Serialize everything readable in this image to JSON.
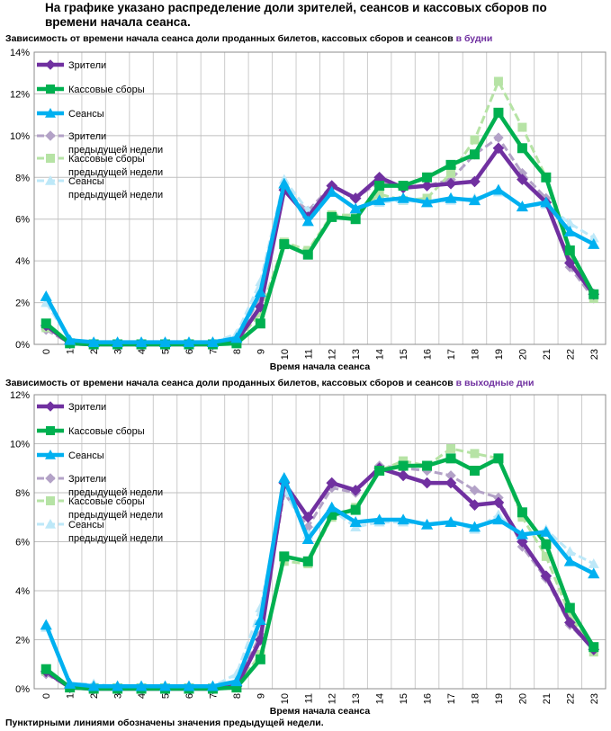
{
  "page": {
    "title": "На графике указано распределение доли зрителей, сеансов и кассовых сборов по времени начала сеанса.",
    "footnote": "Пунктирными линиями обозначены значения предыдущей недели."
  },
  "colors": {
    "viewers": "#7030a0",
    "viewers_prev": "#b3a2c7",
    "box": "#00b050",
    "box_prev": "#b6e3a5",
    "sessions": "#00b0f0",
    "sessions_prev": "#bde8f8",
    "accent": "#7030a0"
  },
  "chart_data": [
    {
      "type": "line",
      "title": "Зависимость от времени начала сеанса доли проданных билетов, кассовых сборов и сеансов",
      "title_accent": "в будни",
      "xlabel": "Время начала сеанса",
      "ylabel": "",
      "ylim": [
        0,
        14
      ],
      "y_ticks": [
        "0%",
        "2%",
        "4%",
        "6%",
        "8%",
        "10%",
        "12%",
        "14%"
      ],
      "x_ticks": [
        "0",
        "1",
        "2",
        "3",
        "4",
        "5",
        "6",
        "7",
        "8",
        "9",
        "10",
        "11",
        "12",
        "13",
        "14",
        "15",
        "16",
        "17",
        "18",
        "19",
        "20",
        "21",
        "22",
        "23"
      ],
      "legend": [
        "Зрители",
        "Кассовые сборы",
        "Сеансы",
        "Зрители предыдущей недели",
        "Кассовые сборы предыдущей недели",
        "Сеансы предыдущей недели"
      ],
      "series": [
        {
          "name": "Зрители",
          "style": "solid",
          "marker": "diamond",
          "color": "#7030a0",
          "values": [
            0.9,
            0.05,
            0,
            0,
            0,
            0,
            0,
            0,
            0.15,
            1.8,
            7.4,
            6.1,
            7.6,
            7.0,
            8.0,
            7.5,
            7.6,
            7.7,
            7.8,
            9.4,
            7.9,
            6.8,
            3.9,
            2.4
          ]
        },
        {
          "name": "Кассовые сборы",
          "style": "solid",
          "marker": "square",
          "color": "#00b050",
          "values": [
            1.0,
            0.05,
            0,
            0,
            0,
            0,
            0,
            0,
            0.05,
            1.0,
            4.8,
            4.3,
            6.1,
            6.0,
            7.6,
            7.6,
            8.0,
            8.6,
            9.1,
            11.1,
            9.4,
            8.0,
            4.5,
            2.4
          ]
        },
        {
          "name": "Сеансы",
          "style": "solid",
          "marker": "triangle",
          "color": "#00b0f0",
          "values": [
            2.3,
            0.2,
            0.1,
            0.1,
            0.1,
            0.1,
            0.1,
            0.1,
            0.3,
            2.5,
            7.7,
            5.9,
            7.3,
            6.5,
            6.9,
            7.0,
            6.8,
            7.0,
            6.9,
            7.4,
            6.6,
            6.8,
            5.4,
            4.8
          ]
        },
        {
          "name": "Зрители предыдущей недели",
          "style": "dashed",
          "marker": "diamond",
          "color": "#b3a2c7",
          "values": [
            0.7,
            0.05,
            0,
            0,
            0,
            0,
            0,
            0,
            0.2,
            2.3,
            7.4,
            6.4,
            7.6,
            7.0,
            7.8,
            7.5,
            7.6,
            7.9,
            9.1,
            9.9,
            8.2,
            7.0,
            3.7,
            2.2
          ]
        },
        {
          "name": "Кассовые сборы предыдущей недели",
          "style": "dashed",
          "marker": "square",
          "color": "#b6e3a5",
          "values": [
            0.8,
            0.05,
            0,
            0,
            0,
            0,
            0,
            0,
            0.1,
            1.5,
            4.9,
            4.5,
            6.2,
            6.2,
            7.2,
            6.9,
            7.0,
            8.2,
            9.8,
            12.6,
            10.4,
            8.0,
            4.3,
            2.2
          ]
        },
        {
          "name": "Сеансы предыдущей недели",
          "style": "dashed",
          "marker": "triangle",
          "color": "#bde8f8",
          "values": [
            2.0,
            0.2,
            0.1,
            0.1,
            0.1,
            0.1,
            0.1,
            0.1,
            0.5,
            3.0,
            7.9,
            6.4,
            7.3,
            6.5,
            6.8,
            6.9,
            6.8,
            6.9,
            7.0,
            7.3,
            6.6,
            6.7,
            5.8,
            5.1
          ]
        }
      ]
    },
    {
      "type": "line",
      "title": "Зависимость от времени начала сеанса доли проданных билетов, кассовых сборов и сеансов",
      "title_accent": "в выходные дни",
      "xlabel": "Время начала сеанса",
      "ylabel": "",
      "ylim": [
        0,
        12
      ],
      "y_ticks": [
        "0%",
        "2%",
        "4%",
        "6%",
        "8%",
        "10%",
        "12%"
      ],
      "x_ticks": [
        "0",
        "1",
        "2",
        "3",
        "4",
        "5",
        "6",
        "7",
        "8",
        "9",
        "10",
        "11",
        "12",
        "13",
        "14",
        "15",
        "16",
        "17",
        "18",
        "19",
        "20",
        "21",
        "22",
        "23"
      ],
      "legend": [
        "Зрители",
        "Кассовые сборы",
        "Сеансы",
        "Зрители предыдущей недели",
        "Кассовые сборы предыдущей недели",
        "Сеансы предыдущей недели"
      ],
      "series": [
        {
          "name": "Зрители",
          "style": "solid",
          "marker": "diamond",
          "color": "#7030a0",
          "values": [
            0.7,
            0.05,
            0,
            0,
            0,
            0,
            0,
            0,
            0.1,
            2.0,
            8.4,
            7.0,
            8.4,
            8.1,
            9.0,
            8.7,
            8.4,
            8.4,
            7.5,
            7.6,
            6.0,
            4.6,
            2.7,
            1.6
          ]
        },
        {
          "name": "Кассовые сборы",
          "style": "solid",
          "marker": "square",
          "color": "#00b050",
          "values": [
            0.8,
            0.05,
            0,
            0,
            0,
            0,
            0,
            0,
            0.05,
            1.2,
            5.4,
            5.2,
            7.1,
            7.3,
            8.9,
            9.1,
            9.1,
            9.4,
            8.9,
            9.4,
            7.2,
            5.9,
            3.3,
            1.7
          ]
        },
        {
          "name": "Сеансы",
          "style": "solid",
          "marker": "triangle",
          "color": "#00b0f0",
          "values": [
            2.6,
            0.2,
            0.1,
            0.1,
            0.1,
            0.1,
            0.1,
            0.1,
            0.3,
            2.8,
            8.6,
            6.1,
            7.4,
            6.8,
            6.9,
            6.9,
            6.7,
            6.8,
            6.6,
            6.9,
            6.3,
            6.4,
            5.2,
            4.7
          ]
        },
        {
          "name": "Зрители предыдущей недели",
          "style": "dashed",
          "marker": "diamond",
          "color": "#b3a2c7",
          "values": [
            0.6,
            0.05,
            0,
            0,
            0,
            0,
            0,
            0,
            0.2,
            2.2,
            8.0,
            6.6,
            8.2,
            8.0,
            9.1,
            9.0,
            8.9,
            8.7,
            8.1,
            7.8,
            5.8,
            4.5,
            2.6,
            1.6
          ]
        },
        {
          "name": "Кассовые сборы предыдущей недели",
          "style": "dashed",
          "marker": "square",
          "color": "#b6e3a5",
          "values": [
            0.7,
            0.05,
            0,
            0,
            0,
            0,
            0,
            0,
            0.1,
            1.4,
            5.2,
            5.1,
            7.0,
            7.4,
            8.9,
            9.3,
            9.1,
            9.8,
            9.6,
            9.4,
            7.0,
            5.4,
            3.0,
            1.5
          ]
        },
        {
          "name": "Сеансы предыдущей недели",
          "style": "dashed",
          "marker": "triangle",
          "color": "#bde8f8",
          "values": [
            2.5,
            0.2,
            0.2,
            0.1,
            0.1,
            0.1,
            0.1,
            0.1,
            0.6,
            3.3,
            8.1,
            6.3,
            7.3,
            6.6,
            6.8,
            6.8,
            6.7,
            6.8,
            6.5,
            7.1,
            6.2,
            6.5,
            5.6,
            5.1
          ]
        }
      ]
    }
  ]
}
